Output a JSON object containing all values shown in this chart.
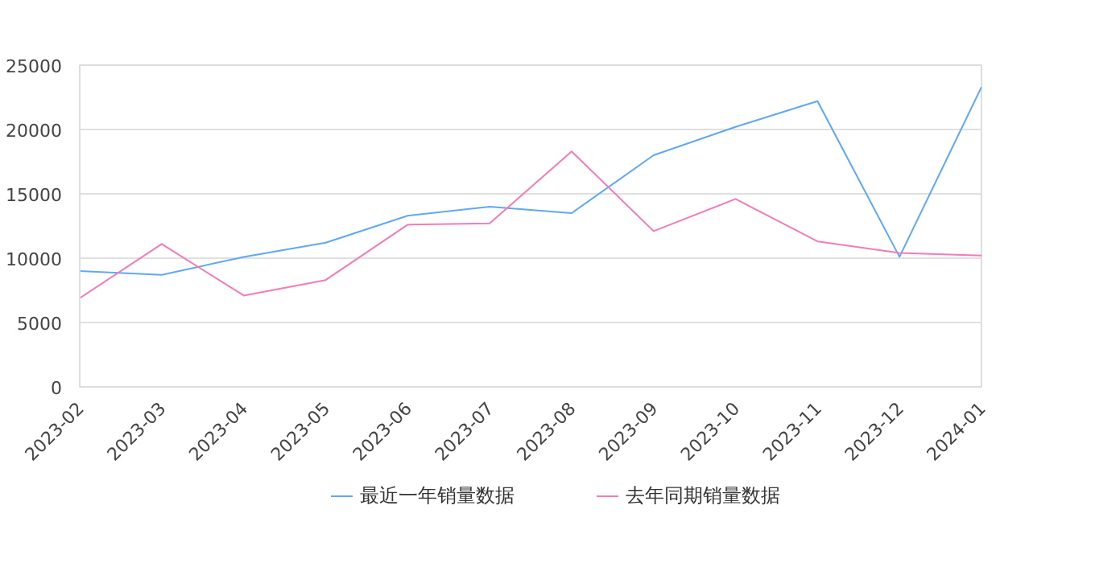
{
  "chart_data": {
    "type": "line",
    "categories": [
      "2023-02",
      "2023-03",
      "2023-04",
      "2023-05",
      "2023-06",
      "2023-07",
      "2023-08",
      "2023-09",
      "2023-10",
      "2023-11",
      "2023-12",
      "2024-01"
    ],
    "series": [
      {
        "name": "最近一年销量数据",
        "color": "#5ea8f5",
        "values": [
          9000,
          8700,
          10100,
          11200,
          13300,
          14000,
          13500,
          18000,
          20200,
          22200,
          10100,
          23300
        ]
      },
      {
        "name": "去年同期销量数据",
        "color": "#f57ab8",
        "values": [
          6900,
          11100,
          7100,
          8300,
          12600,
          12700,
          18300,
          12100,
          14600,
          11300,
          10400,
          10200
        ]
      }
    ],
    "ylim": [
      0,
      25000
    ],
    "yticks": [
      0,
      5000,
      10000,
      15000,
      20000,
      25000
    ],
    "grid": "y",
    "legend": "bottom",
    "marker": "none",
    "line_style": "solid"
  }
}
